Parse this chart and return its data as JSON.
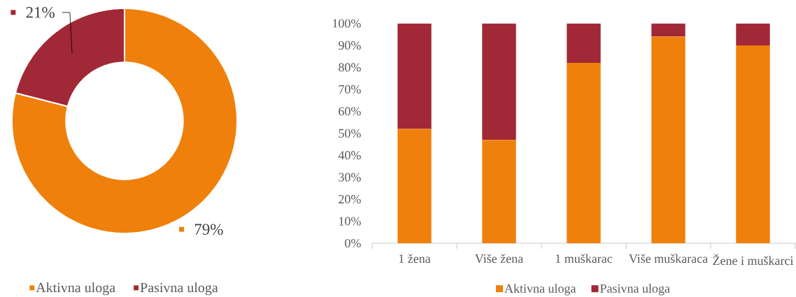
{
  "chart_data": [
    {
      "type": "donut",
      "categories": [
        "Aktivna uloga",
        "Pasivna uloga"
      ],
      "values": [
        79,
        21
      ],
      "colors": [
        "#ef800b",
        "#a12836"
      ],
      "value_labels": [
        "79%",
        "21%"
      ],
      "legend": "bottom"
    },
    {
      "type": "bar",
      "stacked": true,
      "categories": [
        "1 žena",
        "Više žena",
        "1 muškarac",
        "Više muškaraca",
        "Žene i muškarci"
      ],
      "series": [
        {
          "name": "Aktivna uloga",
          "color": "#ef800b",
          "values": [
            52,
            47,
            82,
            94,
            90
          ]
        },
        {
          "name": "Pasivna uloga",
          "color": "#a12836",
          "values": [
            48,
            53,
            18,
            6,
            10
          ]
        }
      ],
      "ylim": [
        0,
        100
      ],
      "yticks": [
        {
          "value": 0,
          "label": "0%"
        },
        {
          "value": 10,
          "label": "10%"
        },
        {
          "value": 20,
          "label": "20%"
        },
        {
          "value": 30,
          "label": "30%"
        },
        {
          "value": 40,
          "label": "40%"
        },
        {
          "value": 50,
          "label": "50%"
        },
        {
          "value": 60,
          "label": "60%"
        },
        {
          "value": 70,
          "label": "70%"
        },
        {
          "value": 80,
          "label": "80%"
        },
        {
          "value": 90,
          "label": "90%"
        },
        {
          "value": 100,
          "label": "100%"
        }
      ],
      "legend": "bottom"
    }
  ]
}
